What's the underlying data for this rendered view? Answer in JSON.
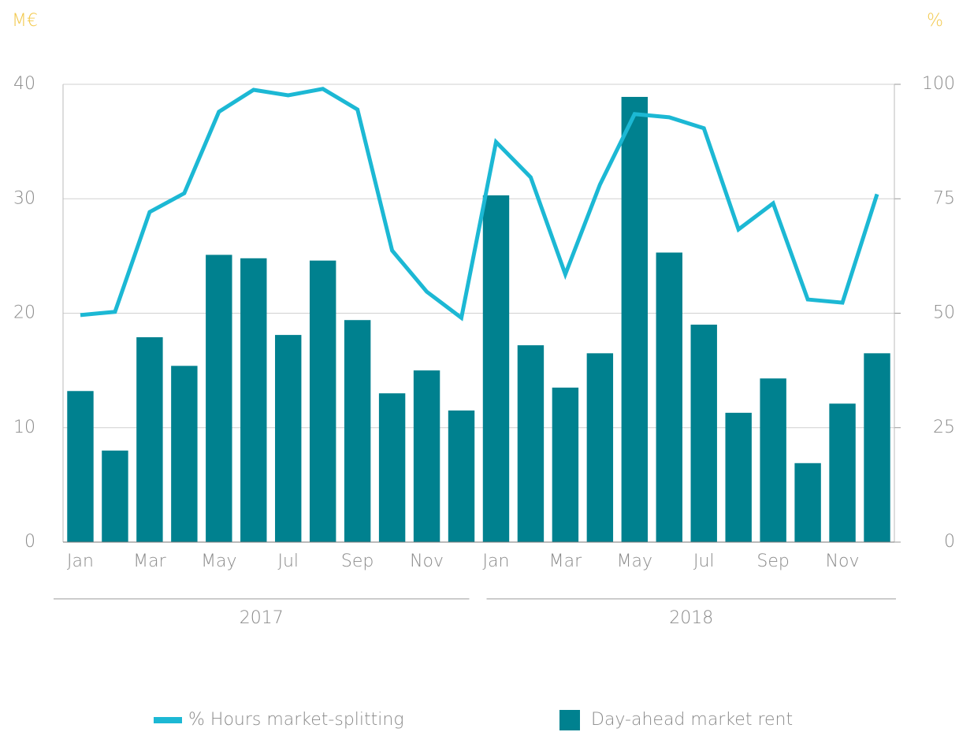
{
  "chart_data": {
    "type": "bar-line",
    "y_label": "M€",
    "y2_label": "%",
    "categories": [
      "Jan",
      null,
      "Mar",
      null,
      "May",
      null,
      "Jul",
      null,
      "Sep",
      null,
      "Nov",
      null,
      "Jan",
      null,
      "Mar",
      null,
      "May",
      null,
      "Jul",
      null,
      "Sep",
      null,
      "Nov",
      null
    ],
    "x_groups": [
      "2017",
      "2018"
    ],
    "series": [
      {
        "name": "% Hours market-splitting",
        "type": "line",
        "axis": "y2",
        "color": "#1cb8d4",
        "values": [
          49.6,
          50.3,
          72.1,
          76.2,
          94,
          98.8,
          97.6,
          99,
          94.5,
          63.7,
          54.7,
          49,
          87.4,
          79.7,
          58.5,
          78.1,
          93.5,
          92.8,
          90.4,
          68.3,
          74,
          53,
          52.3,
          76
        ]
      },
      {
        "name": "Day-ahead market rent",
        "type": "bar",
        "color": "#00818f",
        "values": [
          13.2,
          8.0,
          17.9,
          15.4,
          25.1,
          24.8,
          18.1,
          24.6,
          19.4,
          13.0,
          15.0,
          11.5,
          30.3,
          17.2,
          13.5,
          16.5,
          38.9,
          25.3,
          19.0,
          11.3,
          14.3,
          6.9,
          12.1,
          16.5
        ]
      }
    ],
    "ylim": [
      0,
      40
    ],
    "yticks": [
      0,
      10,
      20,
      30,
      40
    ],
    "y2lim": [
      0,
      100
    ],
    "y2ticks": [
      0,
      25,
      50,
      75,
      100
    ],
    "grid": true,
    "legend": "bottom"
  }
}
